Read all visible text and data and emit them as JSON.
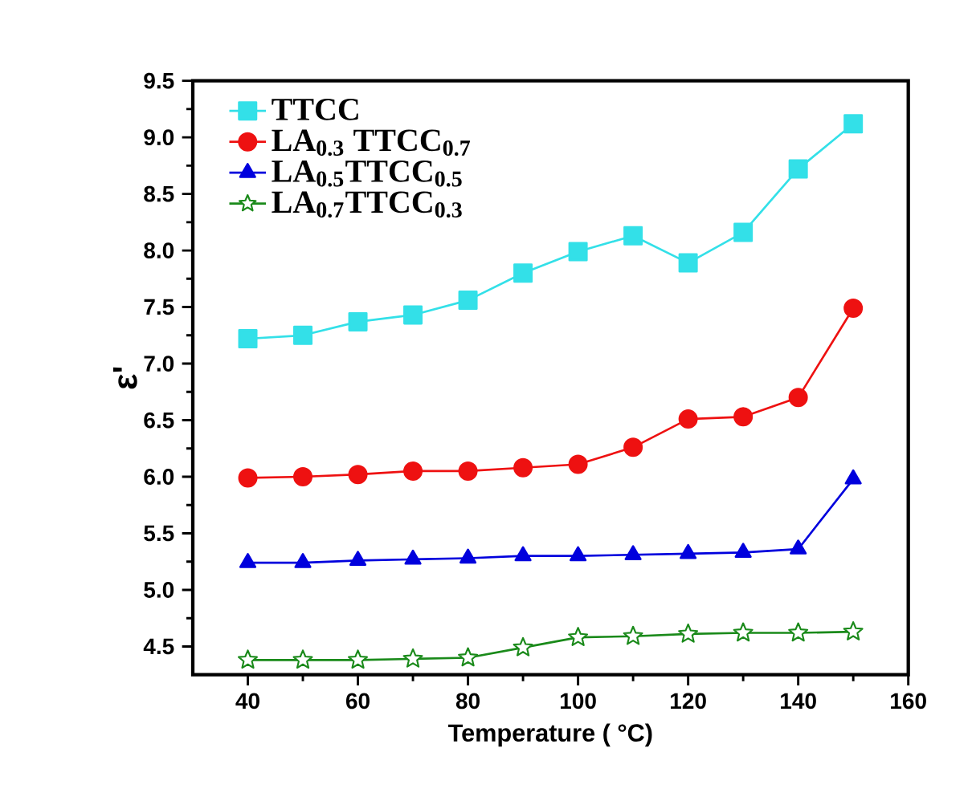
{
  "chart_data": {
    "type": "line",
    "xlabel": "Temperature ( °C)",
    "ylabel": "ε'",
    "x": [
      40,
      50,
      60,
      70,
      80,
      90,
      100,
      110,
      120,
      130,
      140,
      150
    ],
    "xlim": [
      30,
      160
    ],
    "xticks": [
      40,
      60,
      80,
      100,
      120,
      140,
      160
    ],
    "ylim": [
      4.25,
      9.5
    ],
    "yticks": [
      4.5,
      {
        "value": 5,
        "label": "5.0"
      },
      5.5,
      {
        "value": 6,
        "label": "6.0"
      },
      6.5,
      {
        "value": 7,
        "label": "7.0"
      },
      7.5,
      {
        "value": 8,
        "label": "8.0"
      },
      8.5,
      {
        "value": 9,
        "label": "9.0"
      },
      9.5
    ],
    "grid": false,
    "legend": "top left",
    "line_style": "solid",
    "series": [
      {
        "name": "TTCC",
        "color": "#33e0e8",
        "marker": "square",
        "values": [
          7.22,
          7.25,
          7.37,
          7.43,
          7.56,
          7.8,
          7.99,
          8.13,
          7.89,
          8.16,
          8.72,
          9.12
        ]
      },
      {
        "name": "LA$_{0.3}$ TTCC$_{0.7}$",
        "color": "#ee1111",
        "marker": "circle",
        "values": [
          5.99,
          6.0,
          6.02,
          6.05,
          6.05,
          6.08,
          6.11,
          6.26,
          6.51,
          6.53,
          6.7,
          7.49
        ]
      },
      {
        "name": "LA$_{0.5}$TTCC$_{0.5}$",
        "color": "#0000dd",
        "marker": "triangle",
        "values": [
          5.24,
          5.24,
          5.26,
          5.27,
          5.28,
          5.3,
          5.3,
          5.31,
          5.32,
          5.33,
          5.36,
          5.98
        ]
      },
      {
        "name": "LA$_{0.7}$TTCC$_{0.3}$",
        "color": "#1a8a1a",
        "marker": "star",
        "values": [
          4.38,
          4.38,
          4.38,
          4.39,
          4.4,
          4.49,
          4.58,
          4.59,
          4.61,
          4.62,
          4.62,
          4.63
        ]
      }
    ]
  }
}
